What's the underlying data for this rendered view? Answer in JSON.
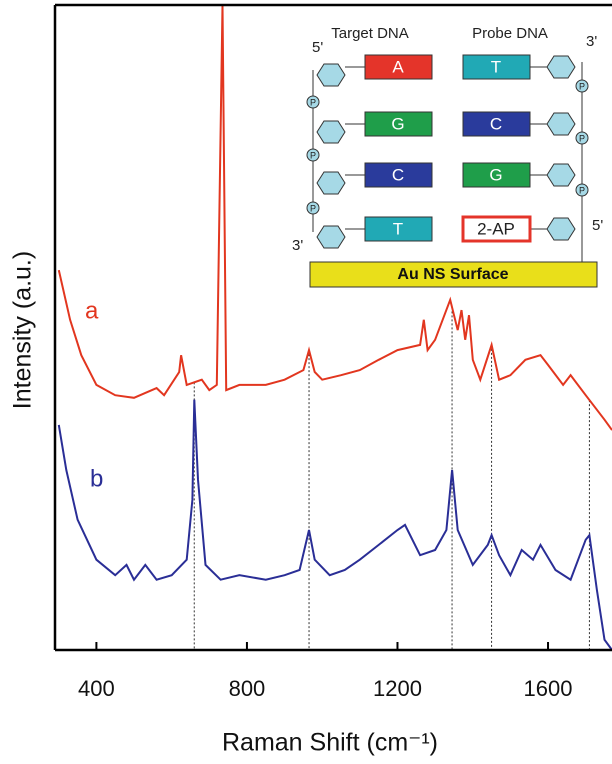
{
  "chart_data": {
    "type": "line",
    "xlabel": "Raman Shift (cm⁻¹)",
    "ylabel": "Intensity (a.u.)",
    "xlim": [
      290,
      1770
    ],
    "ylim": [
      0,
      100
    ],
    "xticks": [
      400,
      800,
      1200,
      1600
    ],
    "reference_lines": [
      660,
      965,
      1345,
      1450,
      1710
    ],
    "series": [
      {
        "name": "a",
        "color": "#e2361f",
        "x": [
          300,
          330,
          360,
          400,
          450,
          500,
          560,
          580,
          620,
          625,
          640,
          680,
          700,
          720,
          735,
          745,
          780,
          850,
          900,
          950,
          965,
          980,
          1000,
          1050,
          1100,
          1150,
          1200,
          1260,
          1270,
          1280,
          1300,
          1340,
          1360,
          1370,
          1380,
          1390,
          1400,
          1420,
          1450,
          1470,
          1500,
          1540,
          1580,
          1600,
          1640,
          1660,
          1700,
          1750,
          1770
        ],
        "values": [
          58.9,
          51.2,
          45.7,
          41.1,
          39.5,
          39.1,
          40.6,
          39.5,
          43.1,
          45.7,
          41.1,
          41.9,
          40.3,
          41.1,
          100,
          40.3,
          41.1,
          41.1,
          41.9,
          43.4,
          46.5,
          43.1,
          41.9,
          42.6,
          43.4,
          45.0,
          46.5,
          47.3,
          51.2,
          46.5,
          48.1,
          54.3,
          49.6,
          52.7,
          48.1,
          51.9,
          45.0,
          41.9,
          47.3,
          41.9,
          42.6,
          45.0,
          45.7,
          44.2,
          41.1,
          42.6,
          39.5,
          35.7,
          34.1
        ]
      },
      {
        "name": "b",
        "color": "#2a2e96",
        "x": [
          300,
          320,
          350,
          400,
          450,
          480,
          500,
          530,
          560,
          600,
          640,
          655,
          660,
          670,
          690,
          730,
          780,
          850,
          900,
          940,
          965,
          980,
          1020,
          1060,
          1100,
          1150,
          1200,
          1220,
          1260,
          1300,
          1330,
          1345,
          1360,
          1400,
          1440,
          1450,
          1470,
          1500,
          1530,
          1560,
          1580,
          1620,
          1660,
          1700,
          1710,
          1730,
          1750,
          1770
        ],
        "values": [
          34.9,
          27.9,
          20.2,
          14.0,
          11.6,
          13.2,
          10.9,
          13.2,
          10.9,
          11.6,
          14.0,
          23.3,
          38.8,
          26.4,
          13.2,
          10.9,
          11.6,
          10.9,
          11.6,
          12.4,
          18.6,
          14.0,
          11.6,
          12.4,
          14.0,
          16.3,
          18.6,
          19.4,
          14.7,
          15.5,
          18.6,
          27.9,
          18.6,
          13.2,
          16.3,
          17.8,
          14.7,
          11.6,
          15.5,
          14.0,
          16.3,
          12.4,
          10.9,
          17.1,
          17.8,
          9.3,
          1.6,
          0
        ]
      }
    ],
    "inset": {
      "target_label": "Target DNA",
      "probe_label": "Probe DNA",
      "target_top_end": "5'",
      "target_bottom_end": "3'",
      "probe_top_end": "3'",
      "probe_bottom_end": "5'",
      "phosphate": "P",
      "target_bases": [
        "A",
        "G",
        "C",
        "T"
      ],
      "probe_bases": [
        "T",
        "C",
        "G",
        "2-AP"
      ],
      "surface": "Au NS Surface"
    }
  }
}
